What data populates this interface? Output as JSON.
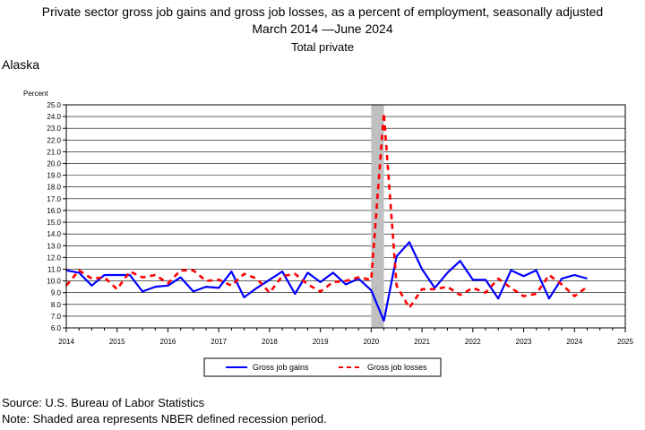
{
  "header": {
    "title": "Private sector gross job gains and gross job losses, as a percent of employment, seasonally adjusted",
    "subtitle": "March 2014 —June 2024",
    "series_scope": "Total private"
  },
  "region": "Alaska",
  "footer": {
    "source": "Source: U.S. Bureau of Labor Statistics",
    "note": "Note: Shaded area represents NBER defined recession period."
  },
  "chart_data": {
    "type": "line",
    "ylabel": "Percent",
    "ylim": [
      6.0,
      25.0
    ],
    "xlim": [
      2014,
      2025
    ],
    "y_ticks": [
      "6.0",
      "7.0",
      "8.0",
      "9.0",
      "10.0",
      "11.0",
      "12.0",
      "13.0",
      "14.0",
      "15.0",
      "16.0",
      "17.0",
      "18.0",
      "19.0",
      "20.0",
      "21.0",
      "22.0",
      "23.0",
      "24.0",
      "25.0"
    ],
    "x_ticks": [
      "2014",
      "2015",
      "2016",
      "2017",
      "2018",
      "2019",
      "2020",
      "2021",
      "2022",
      "2023",
      "2024",
      "2025"
    ],
    "grid": true,
    "legend_position": "bottom",
    "recession": {
      "start": 2020.0,
      "end": 2020.25,
      "color": "#c0c0c0"
    },
    "series": [
      {
        "name": "Gross job gains",
        "color": "#0000ff",
        "style": "solid",
        "x": [
          2014.0,
          2014.25,
          2014.5,
          2014.75,
          2015.0,
          2015.25,
          2015.5,
          2015.75,
          2016.0,
          2016.25,
          2016.5,
          2016.75,
          2017.0,
          2017.25,
          2017.5,
          2017.75,
          2018.0,
          2018.25,
          2018.5,
          2018.75,
          2019.0,
          2019.25,
          2019.5,
          2019.75,
          2020.0,
          2020.25,
          2020.5,
          2020.75,
          2021.0,
          2021.25,
          2021.5,
          2021.75,
          2022.0,
          2022.25,
          2022.5,
          2022.75,
          2023.0,
          2023.25,
          2023.5,
          2023.75,
          2024.0,
          2024.25
        ],
        "values": [
          10.9,
          10.7,
          9.6,
          10.5,
          10.5,
          10.5,
          9.1,
          9.5,
          9.6,
          10.3,
          9.1,
          9.5,
          9.4,
          10.8,
          8.6,
          9.4,
          10.1,
          10.8,
          8.9,
          10.7,
          9.9,
          10.7,
          9.7,
          10.2,
          9.2,
          6.6,
          12.1,
          13.3,
          11.0,
          9.4,
          10.7,
          11.7,
          10.1,
          10.1,
          8.5,
          10.9,
          10.4,
          10.9,
          8.5,
          10.2,
          10.5,
          10.2
        ]
      },
      {
        "name": "Gross job losses",
        "color": "#ff0000",
        "style": "dashed",
        "x": [
          2014.0,
          2014.25,
          2014.5,
          2014.75,
          2015.0,
          2015.25,
          2015.5,
          2015.75,
          2016.0,
          2016.25,
          2016.5,
          2016.75,
          2017.0,
          2017.25,
          2017.5,
          2017.75,
          2018.0,
          2018.25,
          2018.5,
          2018.75,
          2019.0,
          2019.25,
          2019.5,
          2019.75,
          2020.0,
          2020.25,
          2020.5,
          2020.75,
          2021.0,
          2021.25,
          2021.5,
          2021.75,
          2022.0,
          2022.25,
          2022.5,
          2022.75,
          2023.0,
          2023.25,
          2023.5,
          2023.75,
          2024.0,
          2024.25
        ],
        "values": [
          9.6,
          10.9,
          10.2,
          10.3,
          9.3,
          10.8,
          10.3,
          10.5,
          9.8,
          10.9,
          10.9,
          10.0,
          10.1,
          9.6,
          10.6,
          10.2,
          9.0,
          10.4,
          10.6,
          9.7,
          9.1,
          9.9,
          10.0,
          10.3,
          10.1,
          24.3,
          9.6,
          7.7,
          9.3,
          9.3,
          9.5,
          8.8,
          9.4,
          9.0,
          10.2,
          9.4,
          8.7,
          8.9,
          10.5,
          9.7,
          8.7,
          9.5
        ]
      }
    ]
  }
}
